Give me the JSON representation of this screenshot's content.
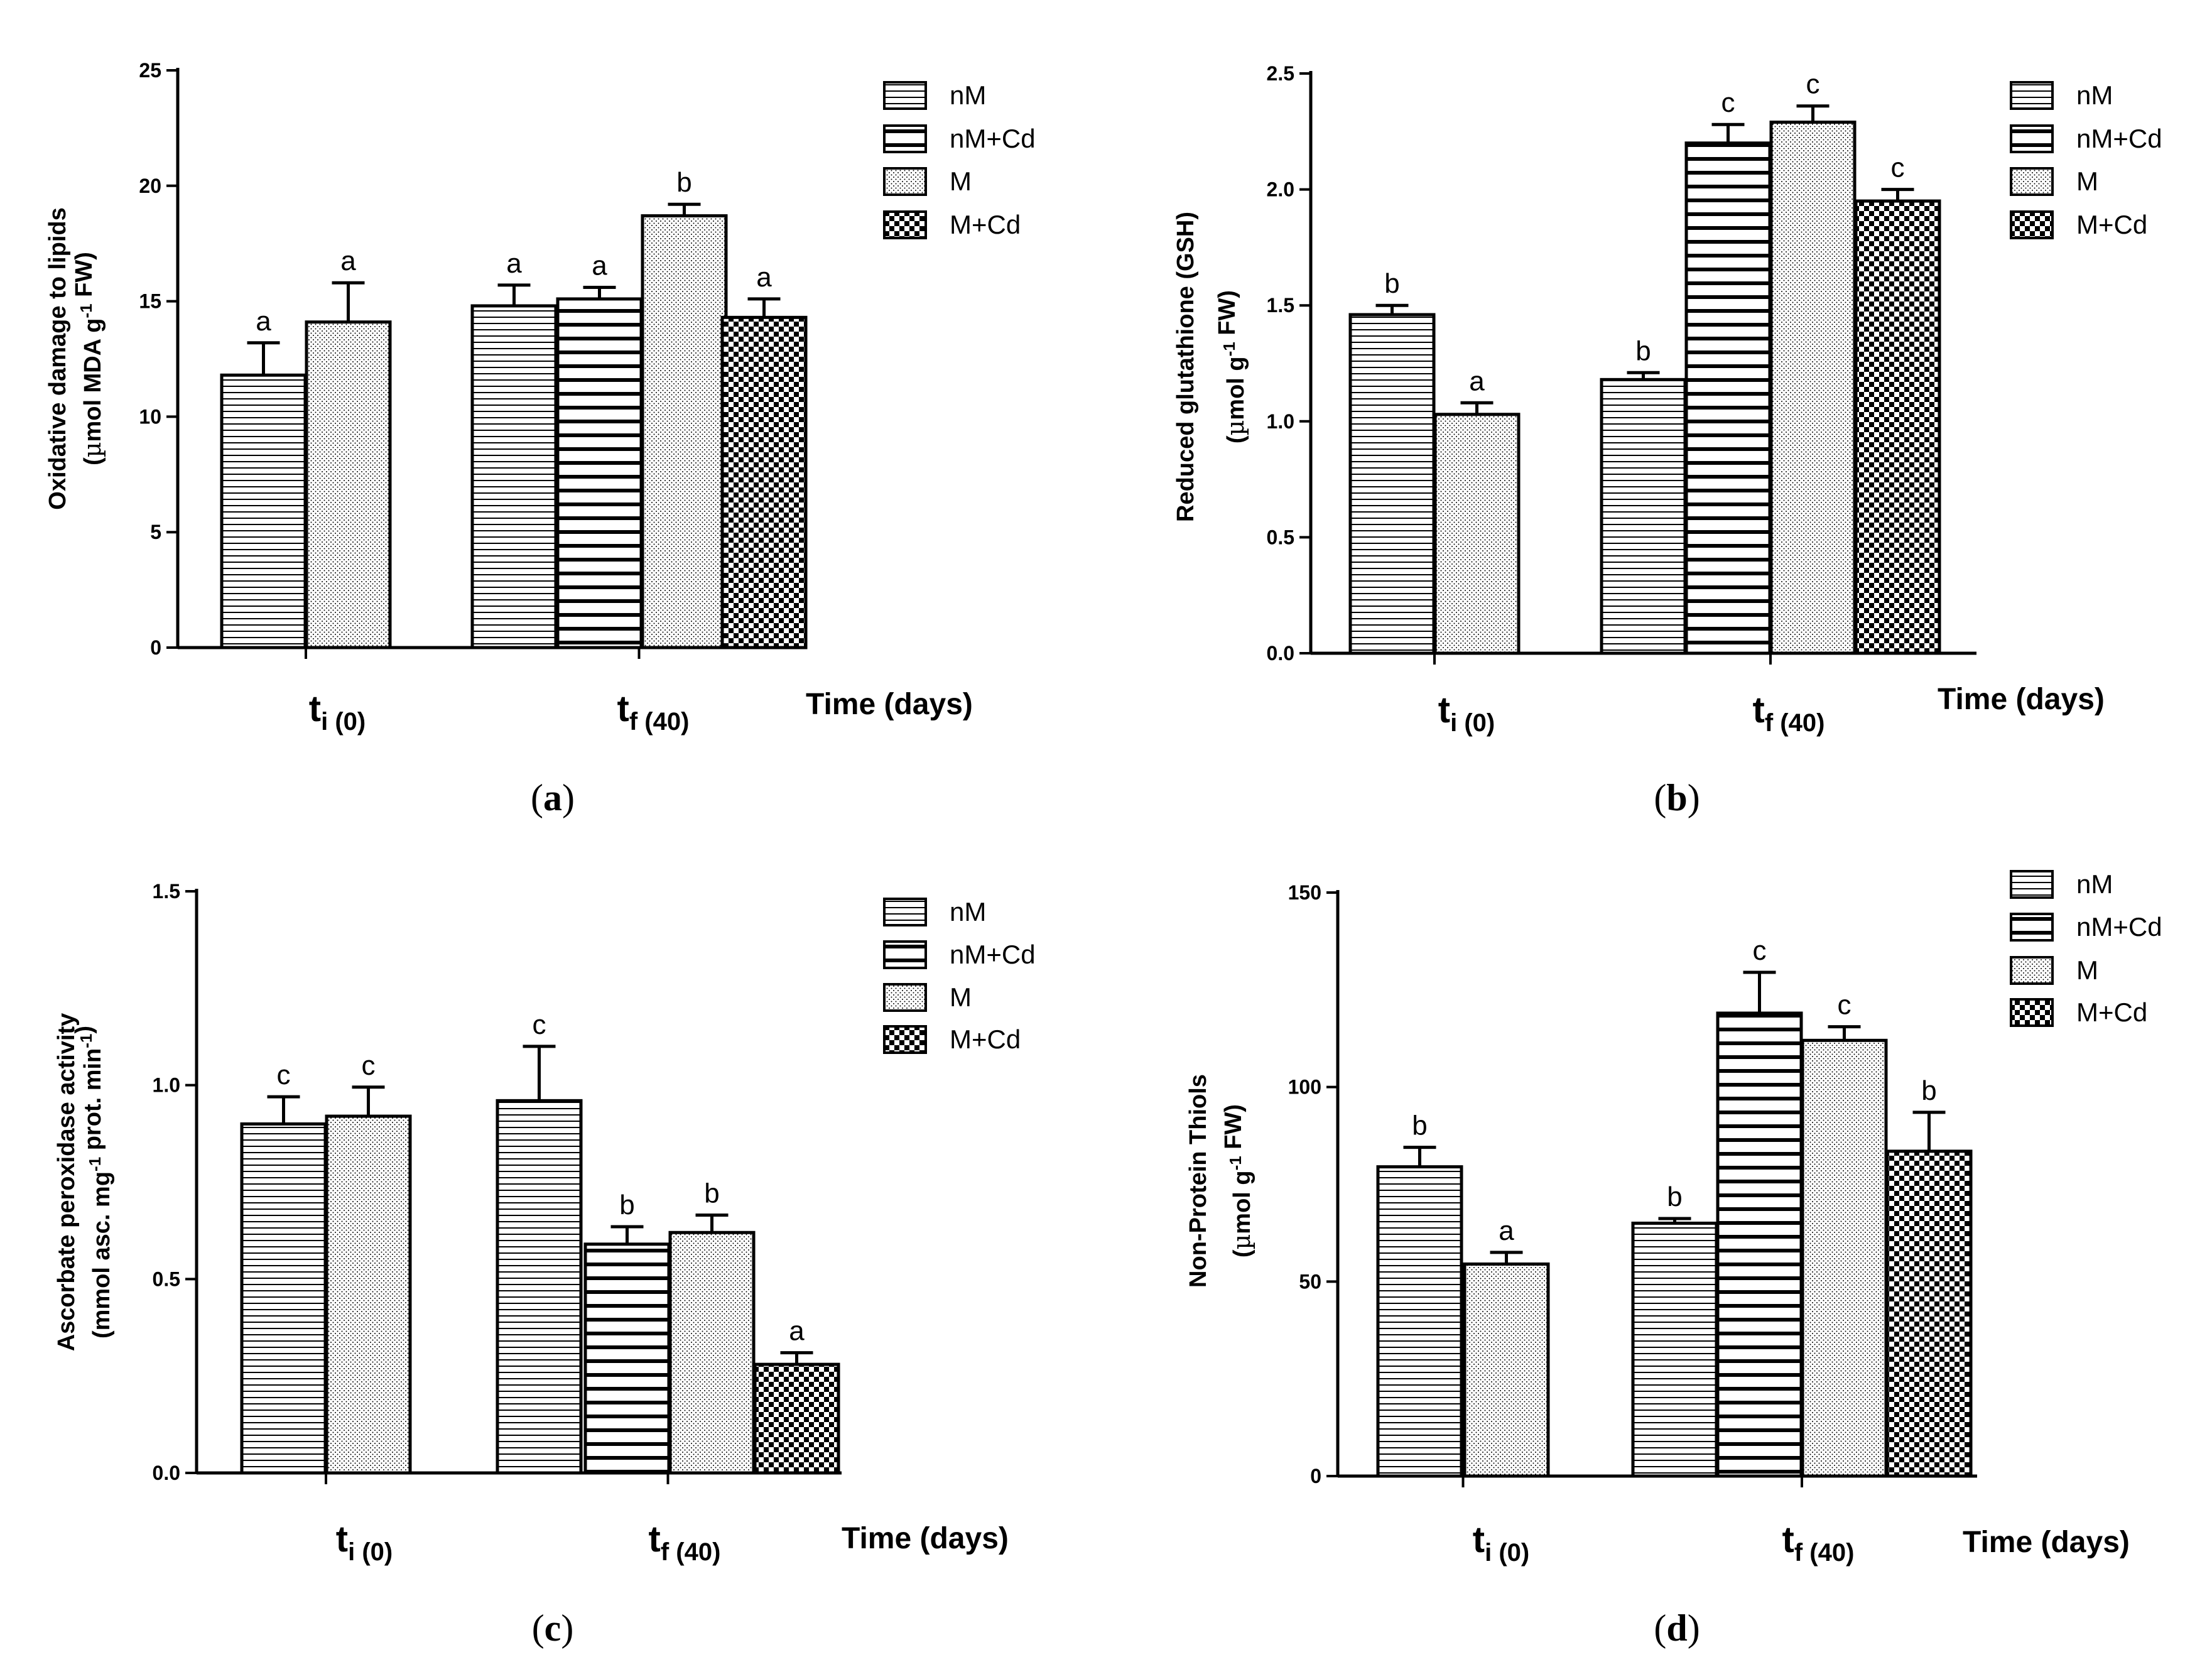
{
  "figure": {
    "legend_labels": [
      "nM",
      "nM+Cd",
      "M",
      "M+Cd"
    ],
    "colors": {
      "ink": "#000000",
      "background": "#ffffff"
    }
  },
  "chart_data": [
    {
      "type": "bar",
      "panel": "a",
      "panel_label": "a",
      "xlabel": "Time (days)",
      "ylabel_line1": "Oxidative damage to lipids",
      "ylabel_line2": "(µmol MDA g-1 FW)",
      "ylabel_line2_parts": [
        "(",
        "µ",
        "mol MDA g",
        "-1",
        " FW)"
      ],
      "ylim": [
        0,
        25
      ],
      "yticks": [
        "0",
        "5",
        "10",
        "15",
        "20",
        "25"
      ],
      "categories": [
        "ti (0)",
        "tf (40)"
      ],
      "category_parts": [
        [
          "t",
          "i (0)"
        ],
        [
          "t",
          "f (40)"
        ]
      ],
      "legend": [
        "nM",
        "nM+Cd",
        "M",
        "M+Cd"
      ],
      "bars": [
        {
          "category": 0,
          "series": "nM",
          "value": 11.8,
          "error": 1.4,
          "label": "a"
        },
        {
          "category": 0,
          "series": "M",
          "value": 14.1,
          "error": 1.7,
          "label": "a"
        },
        {
          "category": 1,
          "series": "nM",
          "value": 14.8,
          "error": 0.9,
          "label": "a"
        },
        {
          "category": 1,
          "series": "nM+Cd",
          "value": 15.1,
          "error": 0.5,
          "label": "a"
        },
        {
          "category": 1,
          "series": "M",
          "value": 18.7,
          "error": 0.5,
          "label": "b"
        },
        {
          "category": 1,
          "series": "M+Cd",
          "value": 14.3,
          "error": 0.8,
          "label": "a"
        }
      ]
    },
    {
      "type": "bar",
      "panel": "b",
      "panel_label": "b",
      "xlabel": "Time (days)",
      "ylabel_line1": "Reduced glutathione (GSH)",
      "ylabel_line2": "(µmol g-1 FW)",
      "ylabel_line2_parts": [
        "(",
        "µ",
        "mol g",
        "-1",
        " FW)"
      ],
      "ylim": [
        0,
        2.5
      ],
      "yticks": [
        "0.0",
        "0.5",
        "1.0",
        "1.5",
        "2.0",
        "2.5"
      ],
      "categories": [
        "ti (0)",
        "tf (40)"
      ],
      "category_parts": [
        [
          "t",
          "i (0)"
        ],
        [
          "t",
          "f (40)"
        ]
      ],
      "legend": [
        "nM",
        "nM+Cd",
        "M",
        "M+Cd"
      ],
      "bars": [
        {
          "category": 0,
          "series": "nM",
          "value": 1.46,
          "error": 0.04,
          "label": "b"
        },
        {
          "category": 0,
          "series": "M",
          "value": 1.03,
          "error": 0.05,
          "label": "a"
        },
        {
          "category": 1,
          "series": "nM",
          "value": 1.18,
          "error": 0.03,
          "label": "b"
        },
        {
          "category": 1,
          "series": "nM+Cd",
          "value": 2.2,
          "error": 0.08,
          "label": "c"
        },
        {
          "category": 1,
          "series": "M",
          "value": 2.29,
          "error": 0.07,
          "label": "c"
        },
        {
          "category": 1,
          "series": "M+Cd",
          "value": 1.95,
          "error": 0.05,
          "label": "c"
        }
      ]
    },
    {
      "type": "bar",
      "panel": "c",
      "panel_label": "c",
      "xlabel": "Time (days)",
      "ylabel_line1": "Ascorbate peroxidase activity",
      "ylabel_line2": "(mmol asc. mg-1 prot. min-1)",
      "ylabel_line2_parts": [
        "(mmol asc. mg",
        "-1",
        " prot. min",
        "-1",
        ")"
      ],
      "ylim": [
        0,
        1.5
      ],
      "yticks": [
        "0.0",
        "0.5",
        "1.0",
        "1.5"
      ],
      "categories": [
        "ti (0)",
        "tf (40)"
      ],
      "category_parts": [
        [
          "t",
          "i (0)"
        ],
        [
          "t",
          "f (40)"
        ]
      ],
      "legend": [
        "nM",
        "nM+Cd",
        "M",
        "M+Cd"
      ],
      "bars": [
        {
          "category": 0,
          "series": "nM",
          "value": 0.9,
          "error": 0.07,
          "label": "c"
        },
        {
          "category": 0,
          "series": "M",
          "value": 0.92,
          "error": 0.075,
          "label": "c"
        },
        {
          "category": 1,
          "series": "nM",
          "value": 0.96,
          "error": 0.14,
          "label": "c"
        },
        {
          "category": 1,
          "series": "nM+Cd",
          "value": 0.59,
          "error": 0.045,
          "label": "b"
        },
        {
          "category": 1,
          "series": "M",
          "value": 0.62,
          "error": 0.045,
          "label": "b"
        },
        {
          "category": 1,
          "series": "M+Cd",
          "value": 0.28,
          "error": 0.03,
          "label": "a"
        }
      ]
    },
    {
      "type": "bar",
      "panel": "d",
      "panel_label": "d",
      "xlabel": "Time (days)",
      "ylabel_line1": "Non-Protein Thiols",
      "ylabel_line2": "(µmol g-1 FW)",
      "ylabel_line2_parts": [
        "(",
        "µ",
        "mol g",
        "-1",
        " FW)"
      ],
      "ylim": [
        0,
        150
      ],
      "yticks": [
        "0",
        "50",
        "100",
        "150"
      ],
      "categories": [
        "ti (0)",
        "tf (40)"
      ],
      "category_parts": [
        [
          "t",
          "i (0)"
        ],
        [
          "t",
          "f (40)"
        ]
      ],
      "legend": [
        "nM",
        "nM+Cd",
        "M",
        "M+Cd"
      ],
      "bars": [
        {
          "category": 0,
          "series": "nM",
          "value": 79.5,
          "error": 5,
          "label": "b"
        },
        {
          "category": 0,
          "series": "M",
          "value": 54.5,
          "error": 3,
          "label": "a"
        },
        {
          "category": 1,
          "series": "nM",
          "value": 65,
          "error": 1.2,
          "label": "b"
        },
        {
          "category": 1,
          "series": "nM+Cd",
          "value": 119,
          "error": 10.5,
          "label": "c"
        },
        {
          "category": 1,
          "series": "M",
          "value": 112,
          "error": 3.5,
          "label": "c"
        },
        {
          "category": 1,
          "series": "M+Cd",
          "value": 83.5,
          "error": 10,
          "label": "b"
        }
      ]
    }
  ]
}
